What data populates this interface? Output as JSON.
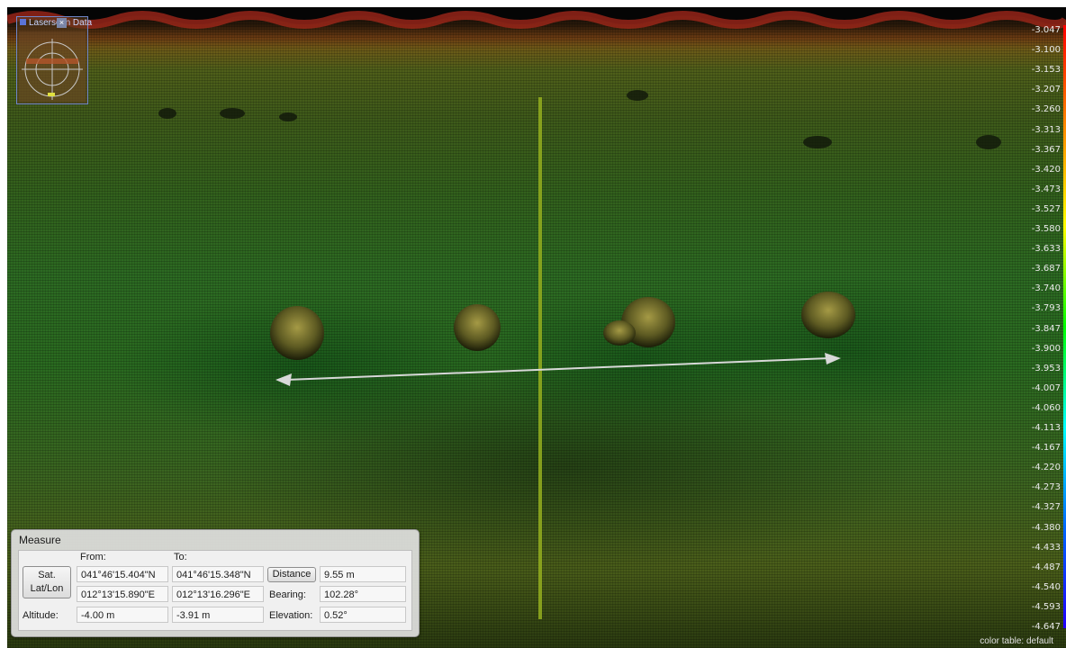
{
  "overview": {
    "title": "Laserscan Data",
    "close_glyph": "×"
  },
  "colorbar": {
    "labels": [
      "-3.047",
      "-3.100",
      "-3.153",
      "-3.207",
      "-3.260",
      "-3.313",
      "-3.367",
      "-3.420",
      "-3.473",
      "-3.527",
      "-3.580",
      "-3.633",
      "-3.687",
      "-3.740",
      "-3.793",
      "-3.847",
      "-3.900",
      "-3.953",
      "-4.007",
      "-4.060",
      "-4.113",
      "-4.167",
      "-4.220",
      "-4.273",
      "-4.327",
      "-4.380",
      "-4.433",
      "-4.487",
      "-4.540",
      "-4.593",
      "-4.647"
    ],
    "color_table_label": "color table: default"
  },
  "measure": {
    "title": "Measure",
    "from_header": "From:",
    "to_header": "To:",
    "coord_button_label": "Sat. Lat/Lon",
    "from_lat": "041°46'15.404\"N",
    "from_lon": "012°13'15.890\"E",
    "to_lat": "041°46'15.348\"N",
    "to_lon": "012°13'16.296\"E",
    "distance_button_label": "Distance",
    "distance_value": "9.55 m",
    "bearing_label": "Bearing:",
    "bearing_value": "102.28°",
    "altitude_label": "Altitude:",
    "altitude_from": "-4.00 m",
    "altitude_to": "-3.91 m",
    "elevation_label": "Elevation:",
    "elevation_value": "0.52°"
  },
  "colors": {
    "measure_line": "#d8d8d8",
    "scan_vertical_line": "#8fa81e"
  }
}
